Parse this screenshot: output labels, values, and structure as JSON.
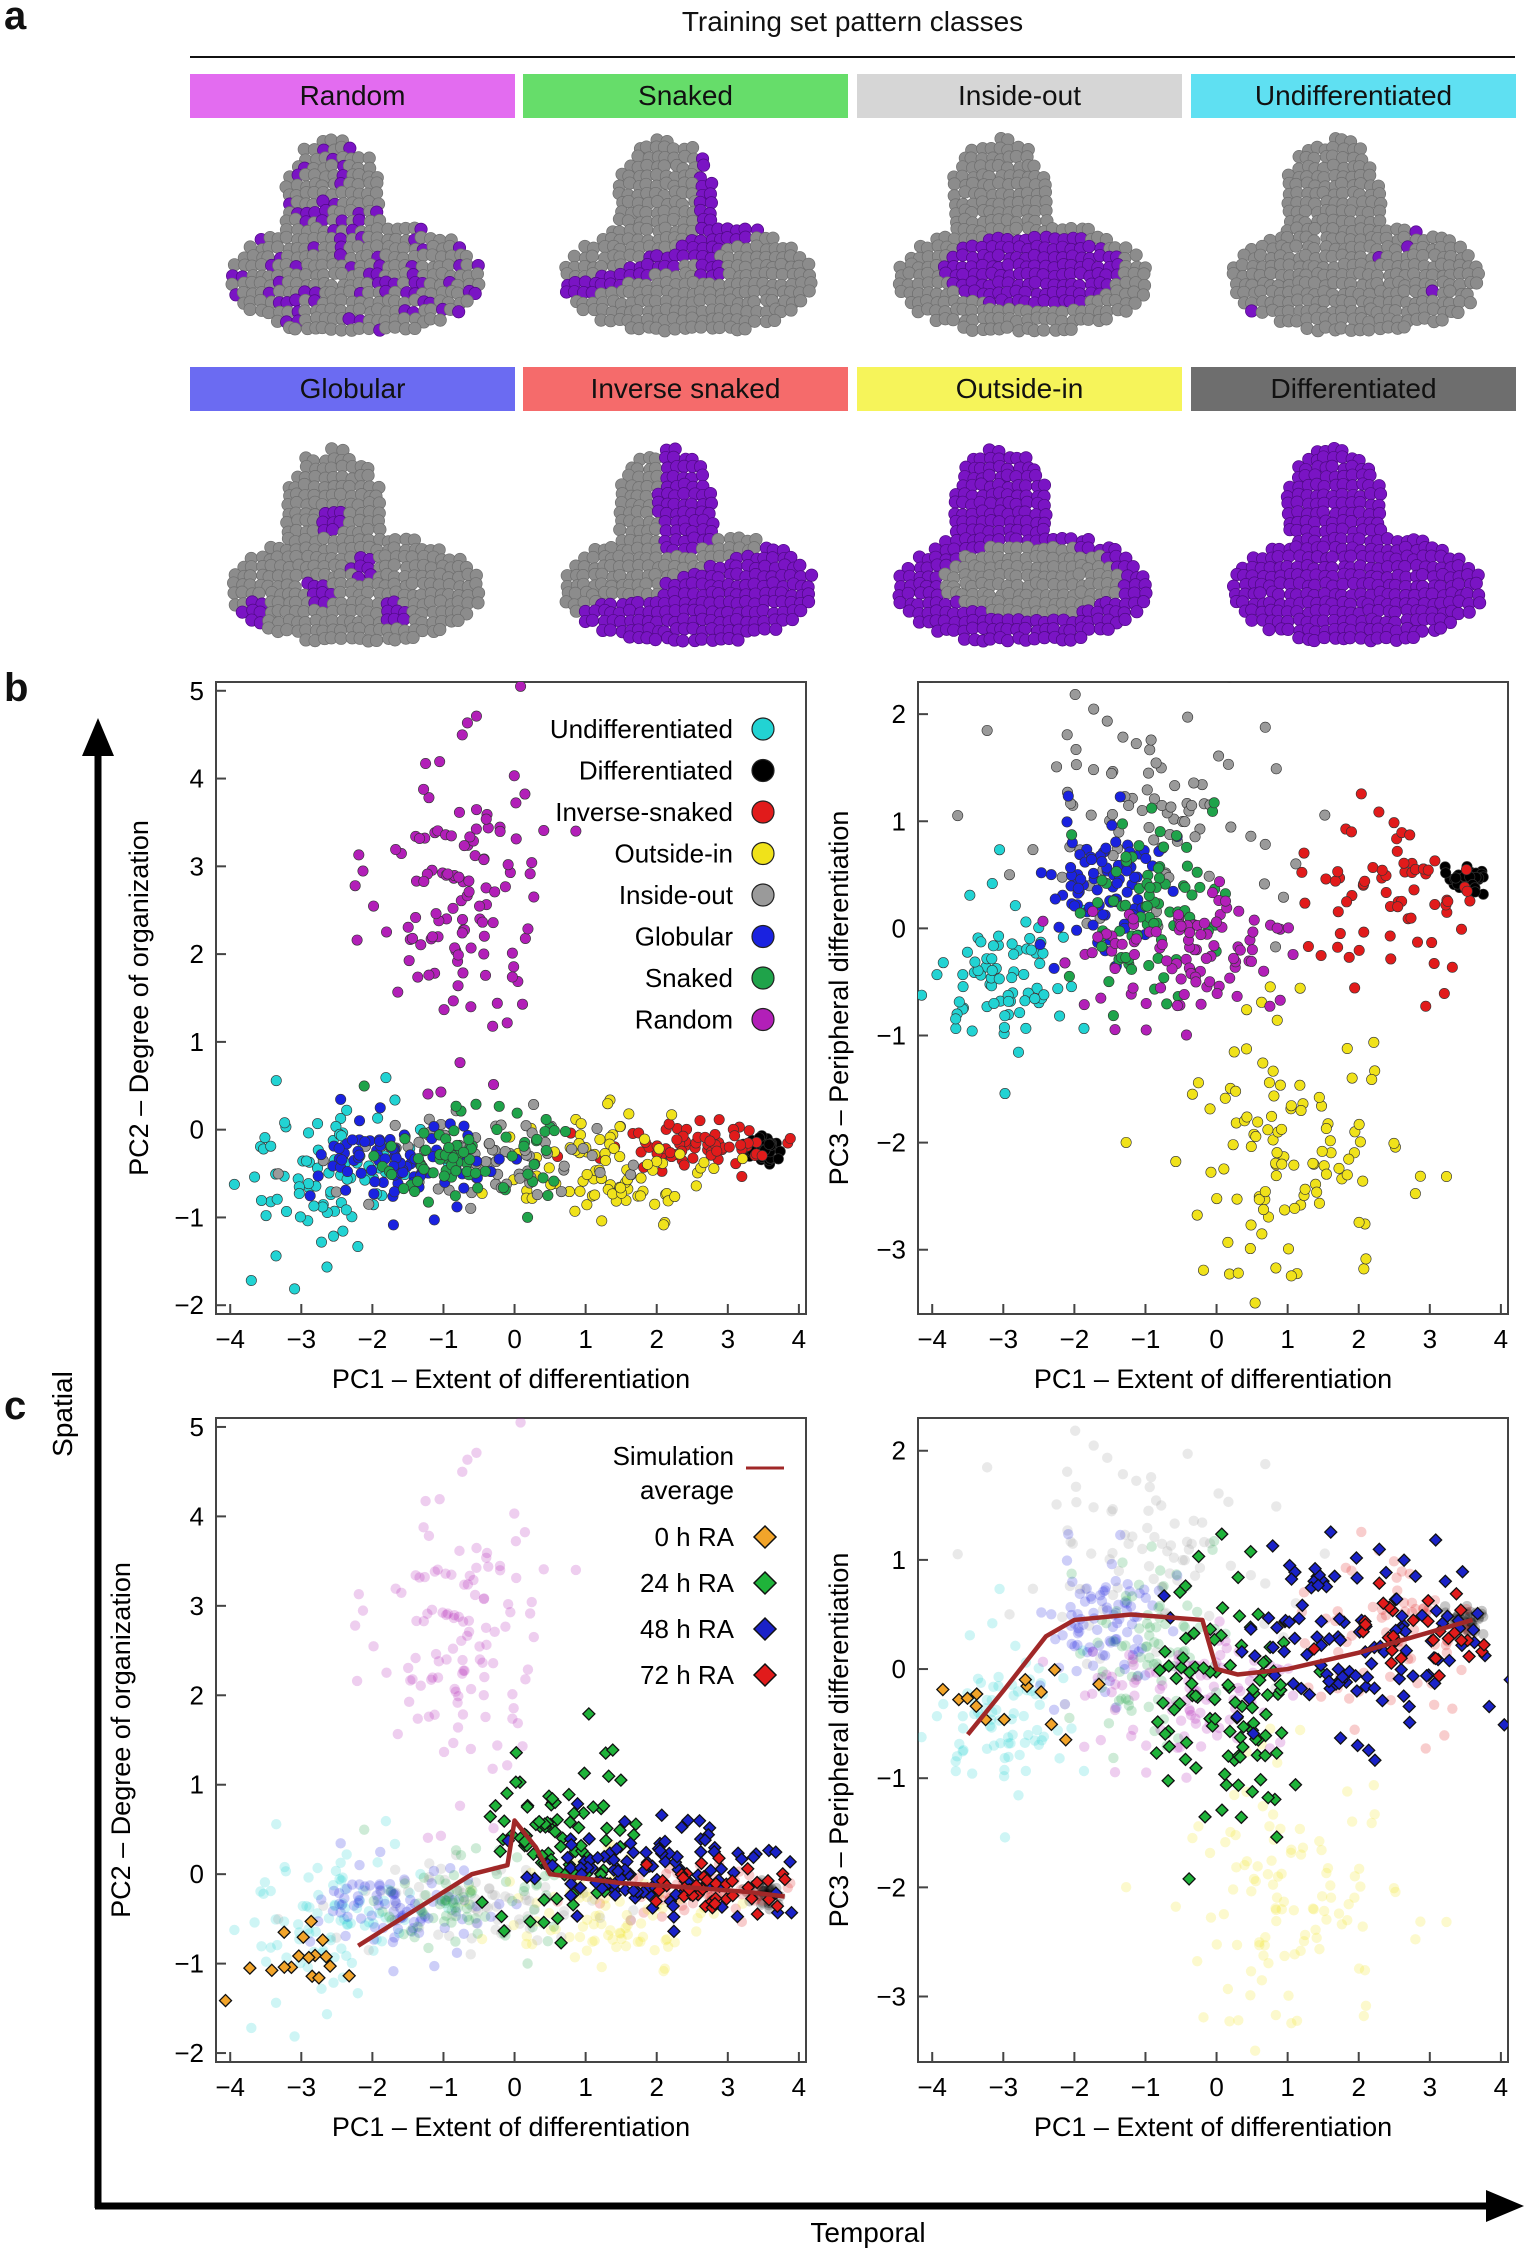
{
  "panel_a": {
    "letter": "a",
    "header": "Training set pattern classes",
    "classes": [
      {
        "label": "Random",
        "color": "#e36cf0",
        "pattern": "random"
      },
      {
        "label": "Snaked",
        "color": "#66dd6a",
        "pattern": "snaked"
      },
      {
        "label": "Inside-out",
        "color": "#d6d6d6",
        "pattern": "inside-out"
      },
      {
        "label": "Undifferentiated",
        "color": "#5fe0f2",
        "pattern": "undifferentiated"
      },
      {
        "label": "Globular",
        "color": "#6b6bf2",
        "pattern": "globular"
      },
      {
        "label": "Inverse snaked",
        "color": "#f56b6b",
        "pattern": "inverse-snaked"
      },
      {
        "label": "Outside-in",
        "color": "#f6f45a",
        "pattern": "outside-in"
      },
      {
        "label": "Differentiated",
        "color": "#6e6e6e",
        "pattern": "differentiated"
      }
    ],
    "cell_colors": {
      "off": "#8c8c8c",
      "on": "#7a14c4"
    }
  },
  "panel_b_letter": "b",
  "panel_c_letter": "c",
  "outer_axes": {
    "vertical_label": "Spatial",
    "horizontal_label": "Temporal"
  },
  "legend_b": [
    {
      "label": "Undifferentiated",
      "color": "#22d3d3"
    },
    {
      "label": "Differentiated",
      "color": "#000000"
    },
    {
      "label": "Inverse-snaked",
      "color": "#e11b1b"
    },
    {
      "label": "Outside-in",
      "color": "#f0e21a"
    },
    {
      "label": "Inside-out",
      "color": "#9a9a9a"
    },
    {
      "label": "Globular",
      "color": "#1a22e0"
    },
    {
      "label": "Snaked",
      "color": "#1fa34a"
    },
    {
      "label": "Random",
      "color": "#b21fb8"
    }
  ],
  "legend_c": {
    "simulation_label_line1": "Simulation",
    "simulation_label_line2": "average",
    "simulation_color": "#a02828",
    "timepoints": [
      {
        "label": "0 h RA",
        "color": "#f2a42a"
      },
      {
        "label": "24 h RA",
        "color": "#1fb33a"
      },
      {
        "label": "48 h RA",
        "color": "#1a22c8"
      },
      {
        "label": "72 h RA",
        "color": "#e11b1b"
      }
    ]
  },
  "chart_data": [
    {
      "type": "scatter",
      "id": "b-left",
      "xlabel": "PC1 – Extent of differentiation",
      "ylabel": "PC2 – Degree of organization",
      "xlim": [
        -4.2,
        4.1
      ],
      "ylim": [
        -2.1,
        5.1
      ],
      "xticks": [
        -4,
        -3,
        -2,
        -1,
        0,
        1,
        2,
        3,
        4
      ],
      "yticks": [
        -2,
        -1,
        0,
        1,
        2,
        3,
        4,
        5
      ],
      "series": [
        {
          "name": "Undifferentiated",
          "center": [
            -2.6,
            -0.5
          ],
          "spread": [
            0.6,
            0.45
          ],
          "count": 90
        },
        {
          "name": "Differentiated",
          "center": [
            3.55,
            -0.22
          ],
          "spread": [
            0.12,
            0.08
          ],
          "count": 40
        },
        {
          "name": "Inverse-snaked",
          "center": [
            2.5,
            -0.2
          ],
          "spread": [
            0.6,
            0.2
          ],
          "count": 70
        },
        {
          "name": "Outside-in",
          "center": [
            1.2,
            -0.5
          ],
          "spread": [
            0.8,
            0.3
          ],
          "count": 90
        },
        {
          "name": "Inside-out",
          "center": [
            -0.5,
            -0.4
          ],
          "spread": [
            1.1,
            0.3
          ],
          "count": 80
        },
        {
          "name": "Globular",
          "center": [
            -1.5,
            -0.4
          ],
          "spread": [
            0.6,
            0.25
          ],
          "count": 90
        },
        {
          "name": "Snaked",
          "center": [
            -0.7,
            -0.3
          ],
          "spread": [
            0.6,
            0.25
          ],
          "count": 80
        },
        {
          "name": "Random",
          "center": [
            -0.8,
            2.6
          ],
          "spread": [
            0.6,
            0.9
          ],
          "count": 120
        }
      ]
    },
    {
      "type": "scatter",
      "id": "b-right",
      "xlabel": "PC1 – Extent of differentiation",
      "ylabel": "PC3 – Peripheral differentiation",
      "xlim": [
        -4.2,
        4.1
      ],
      "ylim": [
        -3.6,
        2.3
      ],
      "xticks": [
        -4,
        -3,
        -2,
        -1,
        0,
        1,
        2,
        3,
        4
      ],
      "yticks": [
        -3,
        -2,
        -1,
        0,
        1,
        2
      ],
      "series": [
        {
          "name": "Undifferentiated",
          "center": [
            -2.9,
            -0.4
          ],
          "spread": [
            0.5,
            0.35
          ],
          "count": 80
        },
        {
          "name": "Differentiated",
          "center": [
            3.5,
            0.45
          ],
          "spread": [
            0.12,
            0.06
          ],
          "count": 40
        },
        {
          "name": "Inverse-snaked",
          "center": [
            2.5,
            0.2
          ],
          "spread": [
            0.6,
            0.35
          ],
          "count": 70
        },
        {
          "name": "Outside-in",
          "center": [
            1.0,
            -2.1
          ],
          "spread": [
            0.8,
            0.6
          ],
          "count": 110
        },
        {
          "name": "Inside-out",
          "center": [
            -1.3,
            1.1
          ],
          "spread": [
            1.0,
            0.5
          ],
          "count": 90
        },
        {
          "name": "Globular",
          "center": [
            -1.6,
            0.4
          ],
          "spread": [
            0.4,
            0.3
          ],
          "count": 90
        },
        {
          "name": "Snaked",
          "center": [
            -1.0,
            0.2
          ],
          "spread": [
            0.5,
            0.4
          ],
          "count": 80
        },
        {
          "name": "Random",
          "center": [
            -0.5,
            -0.2
          ],
          "spread": [
            0.8,
            0.35
          ],
          "count": 100
        }
      ]
    },
    {
      "type": "scatter",
      "id": "c-left",
      "xlabel": "PC1 – Extent of differentiation",
      "ylabel": "PC2 – Degree of organization",
      "xlim": [
        -4.2,
        4.1
      ],
      "ylim": [
        -2.1,
        5.1
      ],
      "xticks": [
        -4,
        -3,
        -2,
        -1,
        0,
        1,
        2,
        3,
        4
      ],
      "yticks": [
        -2,
        -1,
        0,
        1,
        2,
        3,
        4,
        5
      ],
      "background_from": "b-left",
      "timepoint_series": [
        {
          "name": "0 h RA",
          "center": [
            -3.0,
            -1.0
          ],
          "spread": [
            0.5,
            0.3
          ],
          "count": 18
        },
        {
          "name": "24 h RA",
          "center": [
            0.6,
            0.4
          ],
          "spread": [
            0.5,
            0.5
          ],
          "count": 90
        },
        {
          "name": "48 h RA",
          "center": [
            2.0,
            0.0
          ],
          "spread": [
            0.9,
            0.3
          ],
          "count": 120
        },
        {
          "name": "72 h RA",
          "center": [
            2.8,
            -0.15
          ],
          "spread": [
            0.6,
            0.15
          ],
          "count": 40
        }
      ],
      "simulation_average": [
        [
          -2.2,
          -0.8
        ],
        [
          -1.4,
          -0.4
        ],
        [
          -0.6,
          0.0
        ],
        [
          -0.1,
          0.1
        ],
        [
          0.0,
          0.6
        ],
        [
          0.3,
          0.3
        ],
        [
          0.5,
          0.0
        ],
        [
          1.5,
          -0.1
        ],
        [
          2.5,
          -0.15
        ],
        [
          3.3,
          -0.2
        ],
        [
          3.8,
          -0.25
        ]
      ]
    },
    {
      "type": "scatter",
      "id": "c-right",
      "xlabel": "PC1 – Extent of differentiation",
      "ylabel": "PC3 – Peripheral differentiation",
      "xlim": [
        -4.2,
        4.1
      ],
      "ylim": [
        -3.6,
        2.3
      ],
      "xticks": [
        -4,
        -3,
        -2,
        -1,
        0,
        1,
        2,
        3,
        4
      ],
      "yticks": [
        -3,
        -2,
        -1,
        0,
        1,
        2
      ],
      "background_from": "b-right",
      "timepoint_series": [
        {
          "name": "0 h RA",
          "center": [
            -3.0,
            -0.3
          ],
          "spread": [
            0.5,
            0.25
          ],
          "count": 14
        },
        {
          "name": "24 h RA",
          "center": [
            0.2,
            -0.3
          ],
          "spread": [
            0.6,
            0.6
          ],
          "count": 100
        },
        {
          "name": "48 h RA",
          "center": [
            2.0,
            0.2
          ],
          "spread": [
            0.9,
            0.4
          ],
          "count": 120
        },
        {
          "name": "72 h RA",
          "center": [
            2.8,
            0.35
          ],
          "spread": [
            0.5,
            0.2
          ],
          "count": 30
        }
      ],
      "simulation_average": [
        [
          -3.5,
          -0.6
        ],
        [
          -3.0,
          -0.2
        ],
        [
          -2.4,
          0.3
        ],
        [
          -2.0,
          0.45
        ],
        [
          -1.2,
          0.5
        ],
        [
          -0.2,
          0.45
        ],
        [
          0.0,
          0.0
        ],
        [
          0.3,
          -0.05
        ],
        [
          1.0,
          0.0
        ],
        [
          2.0,
          0.15
        ],
        [
          2.8,
          0.3
        ],
        [
          3.6,
          0.45
        ]
      ]
    }
  ]
}
